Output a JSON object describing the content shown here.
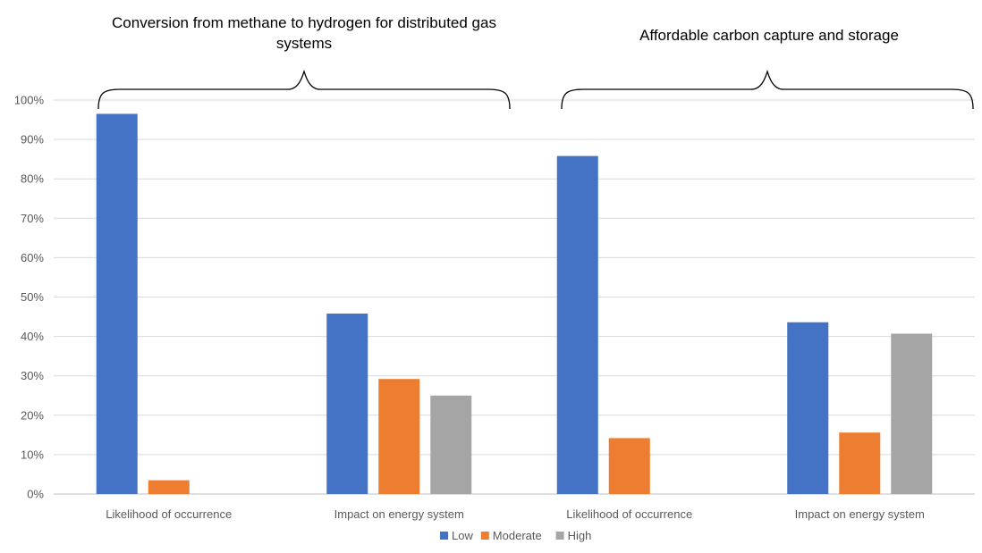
{
  "chart_data": {
    "type": "bar",
    "groups": [
      {
        "title": "Conversion from methane to hydrogen for distributed gas systems",
        "categories": [
          "Likelihood of occurrence",
          "Impact on energy system"
        ]
      },
      {
        "title": "Affordable carbon capture and storage",
        "categories": [
          "Likelihood of occurrence",
          "Impact on energy system"
        ]
      }
    ],
    "categories": [
      "Likelihood of occurrence",
      "Impact on energy system",
      "Likelihood of occurrence",
      "Impact on energy system"
    ],
    "series": [
      {
        "name": "Low",
        "color": "#4472C4",
        "values": [
          96.5,
          45.8,
          85.8,
          43.6
        ]
      },
      {
        "name": "Moderate",
        "color": "#ED7D31",
        "values": [
          3.5,
          29.2,
          14.2,
          15.6
        ]
      },
      {
        "name": "High",
        "color": "#A5A5A5",
        "values": [
          0,
          25.0,
          0,
          40.7
        ]
      }
    ],
    "ylim": [
      0,
      100
    ],
    "y_ticks": [
      "0%",
      "10%",
      "20%",
      "30%",
      "40%",
      "50%",
      "60%",
      "70%",
      "80%",
      "90%",
      "100%"
    ],
    "grid": true,
    "legend_position": "bottom"
  }
}
